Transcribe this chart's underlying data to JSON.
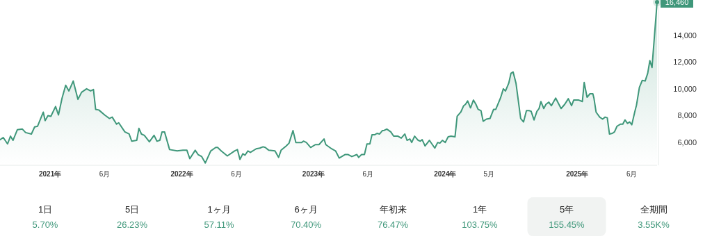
{
  "chart_data": {
    "type": "area",
    "color": "#3f977a",
    "x": [
      "2020-08-15",
      "2020-08-24",
      "2020-09-05",
      "2020-09-13",
      "2020-09-20",
      "2020-10-02",
      "2020-10-16",
      "2020-10-25",
      "2020-11-10",
      "2020-11-19",
      "2020-11-27",
      "2020-12-13",
      "2020-12-18",
      "2020-12-26",
      "2021-01-03",
      "2021-01-16",
      "2021-01-24",
      "2021-02-03",
      "2021-02-13",
      "2021-02-22",
      "2021-03-06",
      "2021-03-19",
      "2021-03-29",
      "2021-04-12",
      "2021-04-23",
      "2021-05-01",
      "2021-05-07",
      "2021-05-16",
      "2021-06-01",
      "2021-06-14",
      "2021-06-22",
      "2021-07-04",
      "2021-07-10",
      "2021-07-27",
      "2021-08-08",
      "2021-08-15",
      "2021-08-29",
      "2021-09-04",
      "2021-09-11",
      "2021-09-19",
      "2021-10-03",
      "2021-10-16",
      "2021-10-24",
      "2021-11-01",
      "2021-11-07",
      "2021-11-14",
      "2021-11-28",
      "2021-12-19",
      "2022-01-04",
      "2022-01-15",
      "2022-01-23",
      "2022-02-07",
      "2022-02-15",
      "2022-02-25",
      "2022-03-07",
      "2022-03-22",
      "2022-04-05",
      "2022-04-10",
      "2022-04-20",
      "2022-05-07",
      "2022-05-27",
      "2022-06-04",
      "2022-06-11",
      "2022-06-19",
      "2022-06-25",
      "2022-07-03",
      "2022-07-10",
      "2022-07-26",
      "2022-08-05",
      "2022-08-14",
      "2022-08-20",
      "2022-08-30",
      "2022-09-16",
      "2022-09-26",
      "2022-10-03",
      "2022-10-17",
      "2022-10-25",
      "2022-11-05",
      "2022-11-13",
      "2022-11-29",
      "2022-12-04",
      "2022-12-12",
      "2022-12-24",
      "2023-01-06",
      "2023-01-16",
      "2023-01-30",
      "2023-02-04",
      "2023-02-20",
      "2023-03-03",
      "2023-03-13",
      "2023-03-29",
      "2023-04-07",
      "2023-04-17",
      "2023-05-01",
      "2023-05-06",
      "2023-05-14",
      "2023-05-22",
      "2023-05-29",
      "2023-06-06",
      "2023-06-12",
      "2023-06-20",
      "2023-06-26",
      "2023-07-03",
      "2023-07-11",
      "2023-07-15",
      "2023-07-23",
      "2023-08-03",
      "2023-08-11",
      "2023-08-23",
      "2023-09-01",
      "2023-09-11",
      "2023-09-17",
      "2023-09-25",
      "2023-09-30",
      "2023-10-08",
      "2023-10-18",
      "2023-10-24",
      "2023-10-29",
      "2023-11-06",
      "2023-11-18",
      "2023-12-03",
      "2023-12-11",
      "2023-12-17",
      "2023-12-24",
      "2024-01-01",
      "2024-01-09",
      "2024-01-17",
      "2024-01-28",
      "2024-02-03",
      "2024-02-13",
      "2024-02-21",
      "2024-02-26",
      "2024-03-03",
      "2024-03-11",
      "2024-03-19",
      "2024-03-26",
      "2024-04-01",
      "2024-04-09",
      "2024-04-15",
      "2024-04-24",
      "2024-05-04",
      "2024-05-14",
      "2024-05-20",
      "2024-06-02",
      "2024-06-10",
      "2024-06-16",
      "2024-06-25",
      "2024-07-01",
      "2024-07-07",
      "2024-07-15",
      "2024-07-28",
      "2024-08-05",
      "2024-08-13",
      "2024-08-21",
      "2024-08-26",
      "2024-09-03",
      "2024-09-11",
      "2024-09-17",
      "2024-09-22",
      "2024-09-30",
      "2024-10-06",
      "2024-10-14",
      "2024-10-21",
      "2024-11-02",
      "2024-11-17",
      "2024-11-27",
      "2024-12-07",
      "2024-12-16",
      "2024-12-22",
      "2025-01-05",
      "2025-01-15",
      "2025-01-20",
      "2025-01-28",
      "2025-02-05",
      "2025-02-13",
      "2025-02-16",
      "2025-02-22",
      "2025-03-04",
      "2025-03-12",
      "2025-03-19",
      "2025-03-25",
      "2025-03-31",
      "2025-04-08",
      "2025-04-14",
      "2025-04-21",
      "2025-05-01",
      "2025-05-07",
      "2025-05-13",
      "2025-05-20",
      "2025-05-26",
      "2025-06-01",
      "2025-06-09",
      "2025-06-14",
      "2025-06-22",
      "2025-06-30",
      "2025-07-08",
      "2025-07-15",
      "2025-07-21",
      "2025-07-27",
      "2025-08-10"
    ],
    "values": [
      6210,
      6370,
      5890,
      6470,
      6160,
      6950,
      7000,
      6740,
      6630,
      7160,
      7210,
      8260,
      7630,
      8000,
      7950,
      8680,
      8050,
      9310,
      10260,
      9840,
      10580,
      9210,
      9740,
      10000,
      9840,
      9950,
      8470,
      8420,
      8050,
      7790,
      7890,
      7370,
      7470,
      6790,
      6630,
      6100,
      6160,
      7050,
      6630,
      6530,
      6050,
      6530,
      6100,
      6160,
      6790,
      6790,
      5470,
      5370,
      5420,
      5420,
      4790,
      5420,
      5100,
      4950,
      4470,
      5370,
      5630,
      5630,
      5370,
      5000,
      5370,
      5470,
      4740,
      5160,
      5050,
      5370,
      5260,
      5530,
      5580,
      5680,
      5630,
      5420,
      5370,
      4890,
      5420,
      5740,
      5950,
      6890,
      6000,
      6000,
      6100,
      6000,
      5630,
      5840,
      5840,
      6260,
      5840,
      5530,
      5370,
      4840,
      5100,
      5100,
      4950,
      5100,
      4890,
      5100,
      5100,
      5890,
      5890,
      6580,
      6580,
      6680,
      6630,
      6890,
      6890,
      7000,
      6790,
      6470,
      6470,
      6320,
      6630,
      6160,
      6260,
      6000,
      6470,
      6160,
      6100,
      6210,
      5740,
      6160,
      5580,
      6000,
      5950,
      6160,
      6000,
      6420,
      6470,
      6420,
      7950,
      8260,
      8740,
      8840,
      9100,
      8580,
      9160,
      8840,
      8470,
      8370,
      7580,
      7740,
      7790,
      8470,
      8470,
      9310,
      10000,
      9840,
      10420,
      11150,
      11260,
      10420,
      7790,
      7530,
      8370,
      8370,
      8320,
      7680,
      8320,
      8530,
      9050,
      8530,
      8840,
      9000,
      8740,
      9310,
      8530,
      8840,
      9260,
      8740,
      9160,
      9160,
      9050,
      10470,
      9370,
      9630,
      9630,
      9310,
      8260,
      7890,
      7740,
      7890,
      7840,
      6630,
      6680,
      6790,
      7210,
      7370,
      7370,
      7680,
      7420,
      7530,
      7320,
      8260,
      8790,
      10100,
      10630,
      10580,
      11150,
      12100,
      11580,
      16460
    ],
    "xticks": [
      {
        "value": "2021-01-01",
        "label": "2021年"
      },
      {
        "value": "2021-06-01",
        "label": "6月"
      },
      {
        "value": "2022-01-01",
        "label": "2022年"
      },
      {
        "value": "2022-06-01",
        "label": "6月"
      },
      {
        "value": "2023-01-01",
        "label": "2023年"
      },
      {
        "value": "2023-06-01",
        "label": "6月"
      },
      {
        "value": "2024-01-01",
        "label": "2024年"
      },
      {
        "value": "2024-05-01",
        "label": "5月"
      },
      {
        "value": "2025-01-01",
        "label": "2025年"
      },
      {
        "value": "2025-06-01",
        "label": "6月"
      }
    ],
    "xlim": [
      "2020-08-15",
      "2025-08-10"
    ],
    "ylim": [
      4300,
      16460
    ],
    "yticks": [
      {
        "value": 6000,
        "label": "6,000"
      },
      {
        "value": 8000,
        "label": "8,000"
      },
      {
        "value": 10000,
        "label": "10,000"
      },
      {
        "value": 12000,
        "label": "12,000"
      },
      {
        "value": 14000,
        "label": "14,000"
      }
    ],
    "annotations": [
      {
        "text": "16,460",
        "x": "2025-08-10",
        "y": 16460
      },
      "1日",
      "5.70%",
      "5日",
      "26.23%",
      "1ヶ月",
      "57.11%",
      "6ヶ月",
      "70.40%",
      "年初来",
      "76.47%",
      "1年",
      "103.75%",
      "5年",
      "155.45%",
      "全期間",
      "3.55K%"
    ]
  }
}
